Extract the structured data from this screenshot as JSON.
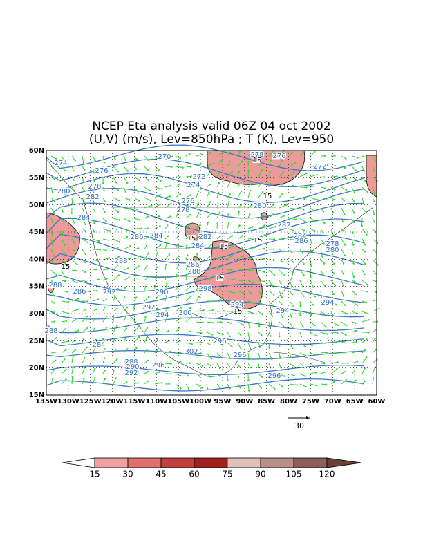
{
  "title": [
    "NCEP Eta analysis valid 06Z 04 oct 2002",
    "(U,V) (m/s), Lev=850hPa ; T (K), Lev=950"
  ],
  "map": {
    "lat_labels": [
      "60N",
      "55N",
      "50N",
      "45N",
      "40N",
      "35N",
      "30N",
      "25N",
      "20N",
      "15N"
    ],
    "lon_labels": [
      "135W",
      "130W",
      "125W",
      "120W",
      "115W",
      "110W",
      "105W",
      "100W",
      "95W",
      "90W",
      "85W",
      "80W",
      "75W",
      "70W",
      "65W",
      "60W"
    ],
    "contour_labels": [
      "274",
      "276",
      "270",
      "278",
      "276",
      "272",
      "272",
      "274",
      "278",
      "280",
      "282",
      "276",
      "278",
      "280",
      "284",
      "282",
      "286",
      "284",
      "282",
      "284",
      "288",
      "286",
      "288",
      "290",
      "292",
      "286",
      "288",
      "292",
      "294",
      "300",
      "298",
      "294",
      "294",
      "294",
      "284",
      "286",
      "278",
      "280",
      "296",
      "296",
      "296",
      "296",
      "302",
      "284",
      "288",
      "288",
      "290",
      "292"
    ],
    "wind_labels": [
      "15",
      "15",
      "15",
      "15",
      "15",
      "15",
      "15",
      "15"
    ]
  },
  "reference_vector": {
    "label": "30"
  },
  "colorbar": {
    "labels": [
      15,
      30,
      45,
      60,
      75,
      90,
      105,
      120
    ],
    "colors": [
      "#ffffff",
      "#f0a0a0",
      "#e07070",
      "#c04040",
      "#a02020",
      "#e0c0b8",
      "#b89088",
      "#8c6058",
      "#6a4038"
    ]
  }
}
